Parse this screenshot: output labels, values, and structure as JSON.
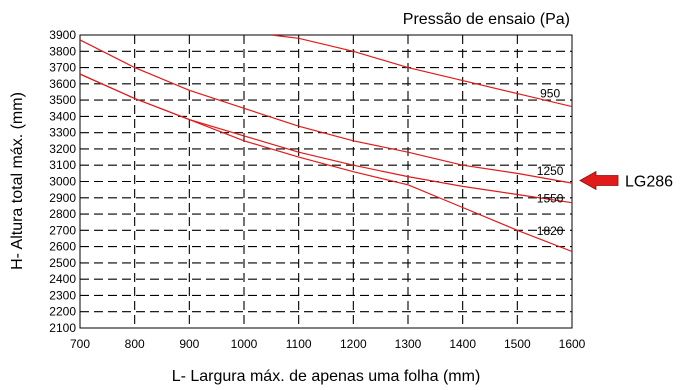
{
  "chart_data": {
    "type": "line",
    "title": "Pressão de ensaio (Pa)",
    "xlabel": "L- Largura máx. de apenas uma folha (mm)",
    "ylabel": "H- Altura total máx. (mm)",
    "xlim": [
      700,
      1600
    ],
    "ylim": [
      2100,
      3900
    ],
    "xticks": [
      700,
      800,
      900,
      1000,
      1100,
      1200,
      1300,
      1400,
      1500,
      1600
    ],
    "yticks": [
      2100,
      2200,
      2300,
      2400,
      2500,
      2600,
      2700,
      2800,
      2900,
      3000,
      3100,
      3200,
      3300,
      3400,
      3500,
      3600,
      3700,
      3800,
      3900
    ],
    "grid": true,
    "series": [
      {
        "name": "950",
        "x": [
          1050,
          1100,
          1200,
          1300,
          1400,
          1500,
          1600
        ],
        "y": [
          3900,
          3880,
          3800,
          3700,
          3620,
          3540,
          3460
        ]
      },
      {
        "name": "1250",
        "x": [
          700,
          800,
          900,
          1000,
          1100,
          1200,
          1300,
          1400,
          1500,
          1600
        ],
        "y": [
          3870,
          3700,
          3560,
          3450,
          3340,
          3250,
          3180,
          3100,
          3050,
          2990
        ]
      },
      {
        "name": "1550",
        "x": [
          700,
          800,
          900,
          1000,
          1100,
          1200,
          1300,
          1400,
          1500,
          1600
        ],
        "y": [
          3660,
          3510,
          3380,
          3280,
          3180,
          3100,
          3030,
          2970,
          2920,
          2870
        ]
      },
      {
        "name": "1820",
        "x": [
          700,
          800,
          900,
          1000,
          1100,
          1200,
          1300,
          1400,
          1500,
          1600
        ],
        "y": [
          3660,
          3510,
          3380,
          3250,
          3150,
          3060,
          2980,
          2840,
          2700,
          2570
        ]
      }
    ],
    "series_override": null,
    "marker": {
      "label": "LG286",
      "y": 3000,
      "color": "#e21a1a"
    }
  }
}
